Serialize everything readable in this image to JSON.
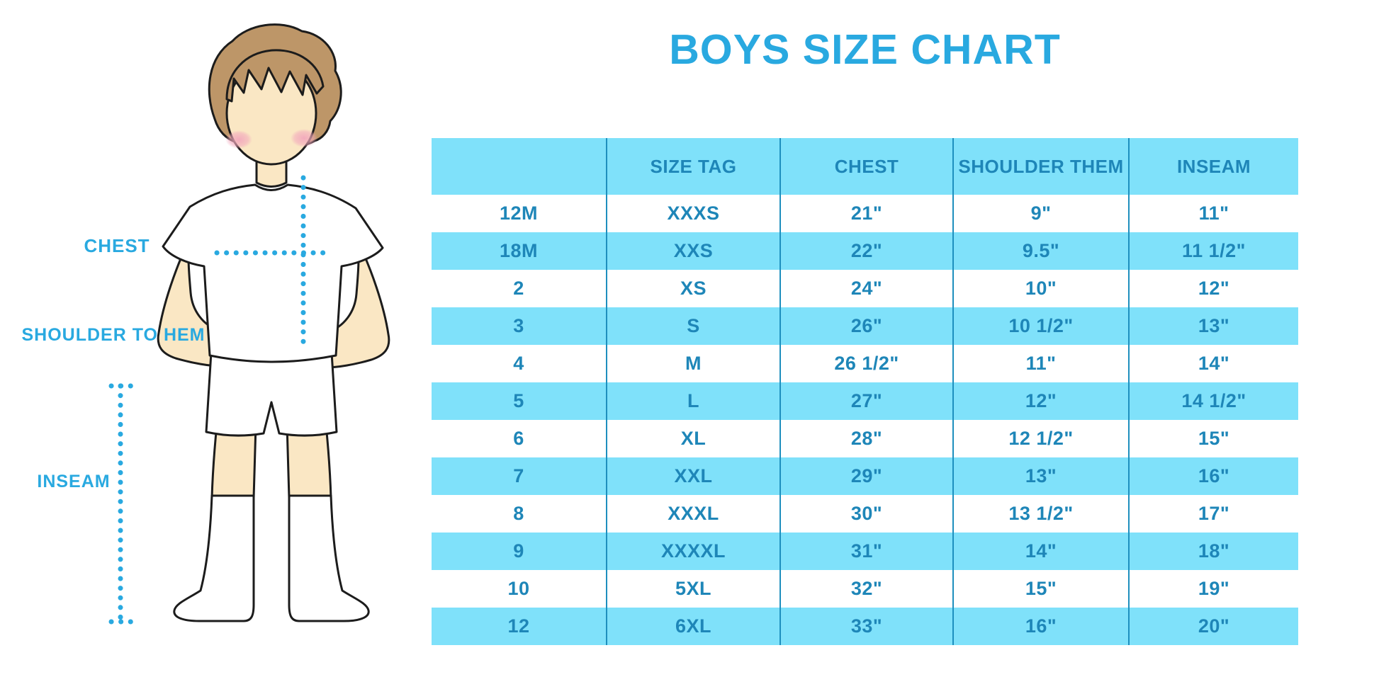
{
  "title": "BOYS SIZE CHART",
  "figure_labels": {
    "chest": "CHEST",
    "shoulder_to_hem": "SHOULDER TO HEM",
    "inseam": "INSEAM"
  },
  "colors": {
    "accent_blue": "#29A9E0",
    "band_cyan": "#7FE1FA",
    "table_text_blue": "#1E86B8",
    "divider_blue": "#1E8FBE",
    "skin": "#FAE7C4",
    "hair_brown": "#BD9668",
    "blush_pink": "#F2A8BC",
    "outline_dark": "#1C1C1C"
  },
  "chart_data": {
    "type": "table",
    "title": "BOYS SIZE CHART",
    "columns": [
      "",
      "SIZE TAG",
      "CHEST",
      "SHOULDER THEM",
      "INSEAM"
    ],
    "rows": [
      [
        "12M",
        "XXXS",
        "21\"",
        "9\"",
        "11\""
      ],
      [
        "18M",
        "XXS",
        "22\"",
        "9.5\"",
        "11 1/2\""
      ],
      [
        "2",
        "XS",
        "24\"",
        "10\"",
        "12\""
      ],
      [
        "3",
        "S",
        "26\"",
        "10 1/2\"",
        "13\""
      ],
      [
        "4",
        "M",
        "26 1/2\"",
        "11\"",
        "14\""
      ],
      [
        "5",
        "L",
        "27\"",
        "12\"",
        "14 1/2\""
      ],
      [
        "6",
        "XL",
        "28\"",
        "12 1/2\"",
        "15\""
      ],
      [
        "7",
        "XXL",
        "29\"",
        "13\"",
        "16\""
      ],
      [
        "8",
        "XXXL",
        "30\"",
        "13 1/2\"",
        "17\""
      ],
      [
        "9",
        "XXXXL",
        "31\"",
        "14\"",
        "18\""
      ],
      [
        "10",
        "5XL",
        "32\"",
        "15\"",
        "19\""
      ],
      [
        "12",
        "6XL",
        "33\"",
        "16\"",
        "20\""
      ]
    ],
    "layout_hints": {
      "striping": "header and every second data row (18M,3,5,7,9,12) filled cyan, others white",
      "grid": "vertical divider lines between all five columns, no outer border",
      "legend_position": "none"
    },
    "annotations": [
      "CHEST",
      "SHOULDER TO HEM",
      "INSEAM"
    ]
  }
}
